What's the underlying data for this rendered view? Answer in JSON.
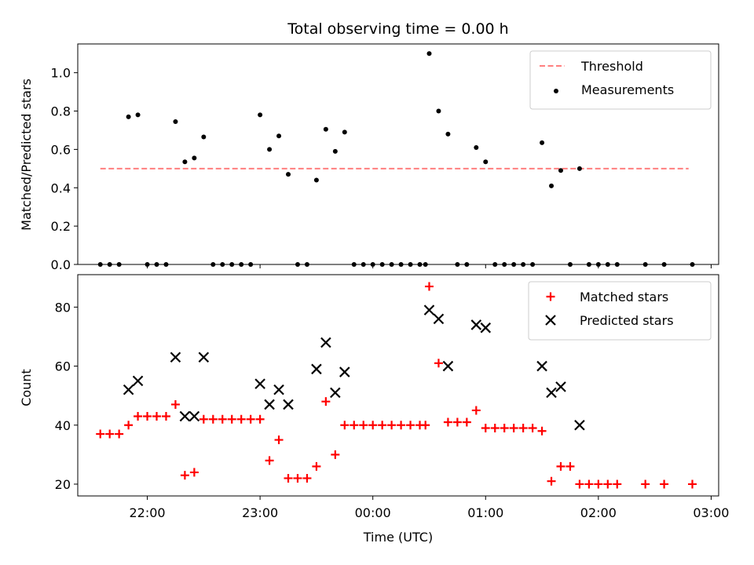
{
  "chart_data": [
    {
      "type": "scatter",
      "title": "Total observing time = 0.00 h",
      "xlabel": "",
      "ylabel": "Matched/Predicted stars",
      "ylim": [
        0,
        1.15
      ],
      "yticks": [
        "0.0",
        "0.2",
        "0.4",
        "0.6",
        "0.8",
        "1.0"
      ],
      "xlim": [
        "21:23",
        "03:04"
      ],
      "grid": false,
      "legend_position": "top-right",
      "threshold": {
        "name": "Threshold",
        "value": 0.5,
        "x_range": [
          "21:35",
          "02:48"
        ],
        "color": "#ff7f7f",
        "style": "dashed"
      },
      "series": [
        {
          "name": "Measurements",
          "color": "#000000",
          "marker": "dot",
          "points": [
            [
              "21:35",
              0.0
            ],
            [
              "21:40",
              0.0
            ],
            [
              "21:45",
              0.0
            ],
            [
              "21:50",
              0.77
            ],
            [
              "21:55",
              0.78
            ],
            [
              "22:00",
              0.0
            ],
            [
              "22:05",
              0.0
            ],
            [
              "22:10",
              0.0
            ],
            [
              "22:15",
              0.745
            ],
            [
              "22:20",
              0.535
            ],
            [
              "22:25",
              0.555
            ],
            [
              "22:30",
              0.665
            ],
            [
              "22:35",
              0.0
            ],
            [
              "22:40",
              0.0
            ],
            [
              "22:45",
              0.0
            ],
            [
              "22:50",
              0.0
            ],
            [
              "22:55",
              0.0
            ],
            [
              "23:00",
              0.78
            ],
            [
              "23:05",
              0.6
            ],
            [
              "23:10",
              0.67
            ],
            [
              "23:15",
              0.47
            ],
            [
              "23:20",
              0.0
            ],
            [
              "23:25",
              0.0
            ],
            [
              "23:30",
              0.44
            ],
            [
              "23:35",
              0.705
            ],
            [
              "23:40",
              0.59
            ],
            [
              "23:45",
              0.69
            ],
            [
              "23:50",
              0.0
            ],
            [
              "23:55",
              0.0
            ],
            [
              "00:00",
              0.0
            ],
            [
              "00:05",
              0.0
            ],
            [
              "00:10",
              0.0
            ],
            [
              "00:15",
              0.0
            ],
            [
              "00:20",
              0.0
            ],
            [
              "00:25",
              0.0
            ],
            [
              "00:28",
              0.0
            ],
            [
              "00:30",
              1.1
            ],
            [
              "00:35",
              0.8
            ],
            [
              "00:40",
              0.68
            ],
            [
              "00:45",
              0.0
            ],
            [
              "00:50",
              0.0
            ],
            [
              "00:55",
              0.61
            ],
            [
              "01:00",
              0.535
            ],
            [
              "01:05",
              0.0
            ],
            [
              "01:10",
              0.0
            ],
            [
              "01:15",
              0.0
            ],
            [
              "01:20",
              0.0
            ],
            [
              "01:25",
              0.0
            ],
            [
              "01:30",
              0.635
            ],
            [
              "01:35",
              0.41
            ],
            [
              "01:40",
              0.49
            ],
            [
              "01:45",
              0.0
            ],
            [
              "01:50",
              0.5
            ],
            [
              "01:55",
              0.0
            ],
            [
              "02:00",
              0.0
            ],
            [
              "02:05",
              0.0
            ],
            [
              "02:10",
              0.0
            ],
            [
              "02:25",
              0.0
            ],
            [
              "02:35",
              0.0
            ],
            [
              "02:50",
              0.0
            ]
          ]
        }
      ]
    },
    {
      "type": "scatter",
      "title": "",
      "xlabel": "Time (UTC)",
      "ylabel": "Count",
      "ylim": [
        16,
        91
      ],
      "yticks": [
        "20",
        "40",
        "60",
        "80"
      ],
      "xlim": [
        "21:23",
        "03:04"
      ],
      "xticks": [
        "22:00",
        "23:00",
        "00:00",
        "01:00",
        "02:00",
        "03:00"
      ],
      "grid": false,
      "legend_position": "top-right",
      "series": [
        {
          "name": "Matched stars",
          "color": "#ff0000",
          "marker": "plus",
          "points": [
            [
              "21:35",
              37
            ],
            [
              "21:40",
              37
            ],
            [
              "21:45",
              37
            ],
            [
              "21:50",
              40
            ],
            [
              "21:55",
              43
            ],
            [
              "22:00",
              43
            ],
            [
              "22:05",
              43
            ],
            [
              "22:10",
              43
            ],
            [
              "22:15",
              47
            ],
            [
              "22:20",
              23
            ],
            [
              "22:25",
              24
            ],
            [
              "22:30",
              42
            ],
            [
              "22:35",
              42
            ],
            [
              "22:40",
              42
            ],
            [
              "22:45",
              42
            ],
            [
              "22:50",
              42
            ],
            [
              "22:55",
              42
            ],
            [
              "23:00",
              42
            ],
            [
              "23:05",
              28
            ],
            [
              "23:10",
              35
            ],
            [
              "23:15",
              22
            ],
            [
              "23:20",
              22
            ],
            [
              "23:25",
              22
            ],
            [
              "23:30",
              26
            ],
            [
              "23:35",
              48
            ],
            [
              "23:40",
              30
            ],
            [
              "23:45",
              40
            ],
            [
              "23:50",
              40
            ],
            [
              "23:55",
              40
            ],
            [
              "00:00",
              40
            ],
            [
              "00:05",
              40
            ],
            [
              "00:10",
              40
            ],
            [
              "00:15",
              40
            ],
            [
              "00:20",
              40
            ],
            [
              "00:25",
              40
            ],
            [
              "00:28",
              40
            ],
            [
              "00:30",
              87
            ],
            [
              "00:35",
              61
            ],
            [
              "00:40",
              41
            ],
            [
              "00:45",
              41
            ],
            [
              "00:50",
              41
            ],
            [
              "00:55",
              45
            ],
            [
              "01:00",
              39
            ],
            [
              "01:05",
              39
            ],
            [
              "01:10",
              39
            ],
            [
              "01:15",
              39
            ],
            [
              "01:20",
              39
            ],
            [
              "01:25",
              39
            ],
            [
              "01:30",
              38
            ],
            [
              "01:35",
              21
            ],
            [
              "01:40",
              26
            ],
            [
              "01:45",
              26
            ],
            [
              "01:50",
              20
            ],
            [
              "01:55",
              20
            ],
            [
              "02:00",
              20
            ],
            [
              "02:05",
              20
            ],
            [
              "02:10",
              20
            ],
            [
              "02:25",
              20
            ],
            [
              "02:35",
              20
            ],
            [
              "02:50",
              20
            ]
          ]
        },
        {
          "name": "Predicted stars",
          "color": "#000000",
          "marker": "x",
          "points": [
            [
              "21:50",
              52
            ],
            [
              "21:55",
              55
            ],
            [
              "22:15",
              63
            ],
            [
              "22:20",
              43
            ],
            [
              "22:25",
              43
            ],
            [
              "22:30",
              63
            ],
            [
              "23:00",
              54
            ],
            [
              "23:05",
              47
            ],
            [
              "23:10",
              52
            ],
            [
              "23:15",
              47
            ],
            [
              "23:30",
              59
            ],
            [
              "23:35",
              68
            ],
            [
              "23:40",
              51
            ],
            [
              "23:45",
              58
            ],
            [
              "00:30",
              79
            ],
            [
              "00:35",
              76
            ],
            [
              "00:40",
              60
            ],
            [
              "00:55",
              74
            ],
            [
              "01:00",
              73
            ],
            [
              "01:30",
              60
            ],
            [
              "01:35",
              51
            ],
            [
              "01:40",
              53
            ],
            [
              "01:50",
              40
            ]
          ]
        }
      ]
    }
  ]
}
